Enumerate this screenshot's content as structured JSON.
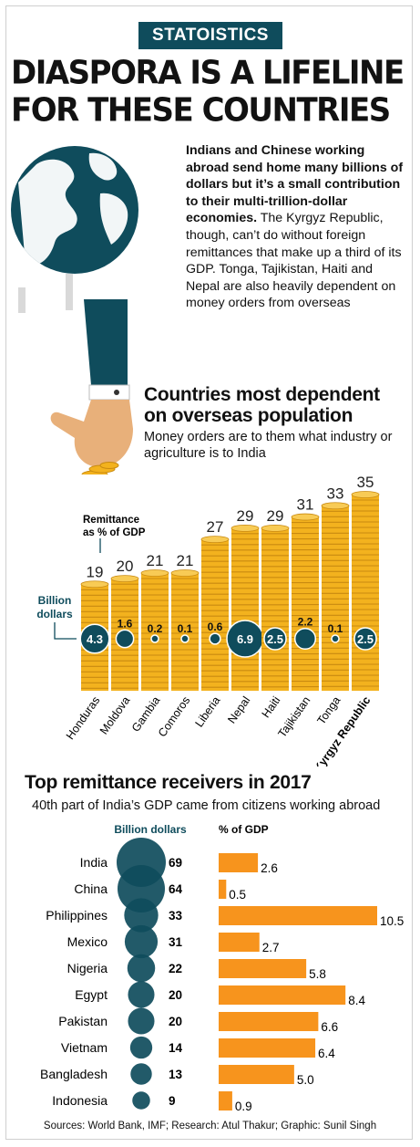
{
  "kicker": "STATOISTICS",
  "headline": {
    "line1": "DIASPORA IS A LIFELINE",
    "line2": "FOR THESE COUNTRIES"
  },
  "intro": {
    "bold": "Indians and Chinese working abroad send home many billions of dollars but it’s a small contribution to their multi-trillion-dollar economies.",
    "regular": "The Kyrgyz Republic, though, can’t do without foreign remittances that make up a third of its GDP. Tonga, Tajikistan, Haiti and Nepal are also heavily dependent on money orders from overseas"
  },
  "section1": {
    "title_line1": "Countries most dependent",
    "title_line2": "on overseas population",
    "subtitle": "Money orders are to them what industry or agriculture is to India",
    "label_pct": "Remittance as % of GDP",
    "label_billion": "Billion dollars"
  },
  "section2": {
    "title": "Top remittance receivers in 2017",
    "subtitle": "40th part of India’s GDP came from citizens working abroad",
    "col_billion": "Billion dollars",
    "col_pct": "% of GDP"
  },
  "source": "Sources: World Bank, IMF; Research: Atul Thakur; Graphic: Sunil Singh",
  "colors": {
    "teal": "#0f4c5c",
    "gold": "#f3b21e",
    "orange": "#f7941d",
    "skin": "#e8b07a"
  },
  "chart_data": [
    {
      "type": "bar",
      "title": "Countries most dependent on overseas population",
      "categories": [
        "Honduras",
        "Moldova",
        "Gambia",
        "Comoros",
        "Liberia",
        "Nepal",
        "Haiti",
        "Tajikistan",
        "Tonga",
        "Kyrgyz Republic"
      ],
      "series": [
        {
          "name": "Remittance as % of GDP",
          "values": [
            19,
            20,
            21,
            21,
            27,
            29,
            29,
            31,
            33,
            35
          ]
        },
        {
          "name": "Billion dollars",
          "values": [
            4.3,
            1.6,
            0.2,
            0.1,
            0.6,
            6.9,
            2.5,
            2.2,
            0.1,
            2.5
          ]
        }
      ],
      "value_labels": [
        "19",
        "20",
        "21",
        "21",
        "27",
        "29",
        "29",
        "31",
        "33",
        "35"
      ],
      "bubble_labels": [
        "4.3",
        "1.6",
        "0.2",
        "0.1",
        "0.6",
        "6.9",
        "2.5",
        "2.2",
        "0.1",
        "2.5"
      ],
      "ylim": [
        0,
        35
      ]
    },
    {
      "type": "bar",
      "title": "Top remittance receivers in 2017",
      "categories": [
        "India",
        "China",
        "Philippines",
        "Mexico",
        "Nigeria",
        "Egypt",
        "Pakistan",
        "Vietnam",
        "Bangladesh",
        "Indonesia"
      ],
      "series": [
        {
          "name": "Billion dollars",
          "values": [
            69,
            64,
            33,
            31,
            22,
            20,
            20,
            14,
            13,
            9
          ]
        },
        {
          "name": "% of GDP",
          "values": [
            2.6,
            0.5,
            10.5,
            2.7,
            5.8,
            8.4,
            6.6,
            6.4,
            5.0,
            0.9
          ]
        }
      ],
      "billion_labels": [
        "69",
        "64",
        "33",
        "31",
        "22",
        "20",
        "20",
        "14",
        "13",
        "9"
      ],
      "pct_labels": [
        "2.6",
        "0.5",
        "10.5",
        "2.7",
        "5.8",
        "8.4",
        "6.6",
        "6.4",
        "5.0",
        "0.9"
      ],
      "xlim": [
        0,
        10.5
      ]
    }
  ]
}
